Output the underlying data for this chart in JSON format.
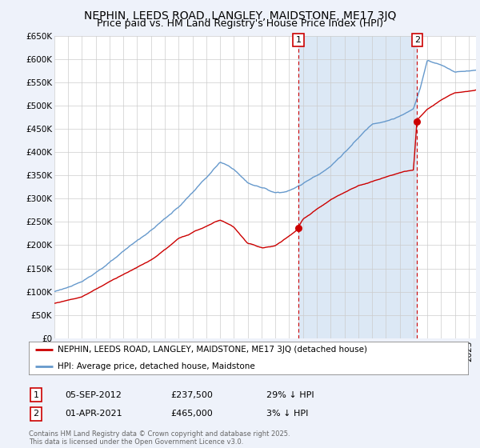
{
  "title": "NEPHIN, LEEDS ROAD, LANGLEY, MAIDSTONE, ME17 3JQ",
  "subtitle": "Price paid vs. HM Land Registry's House Price Index (HPI)",
  "ylim": [
    0,
    650000
  ],
  "yticks": [
    0,
    50000,
    100000,
    150000,
    200000,
    250000,
    300000,
    350000,
    400000,
    450000,
    500000,
    550000,
    600000,
    650000
  ],
  "ytick_labels": [
    "£0",
    "£50K",
    "£100K",
    "£150K",
    "£200K",
    "£250K",
    "£300K",
    "£350K",
    "£400K",
    "£450K",
    "£500K",
    "£550K",
    "£600K",
    "£650K"
  ],
  "xlim_start": 1995.0,
  "xlim_end": 2025.5,
  "background_color": "#eef2fa",
  "plot_bg_color": "#ffffff",
  "shade_color": "#dce8f5",
  "red_line_color": "#cc0000",
  "blue_line_color": "#6699cc",
  "sale1_x": 2012.67,
  "sale1_y": 237500,
  "sale1_label": "1",
  "sale1_date": "05-SEP-2012",
  "sale1_price": "£237,500",
  "sale1_hpi": "29% ↓ HPI",
  "sale2_x": 2021.25,
  "sale2_y": 465000,
  "sale2_label": "2",
  "sale2_date": "01-APR-2021",
  "sale2_price": "£465,000",
  "sale2_hpi": "3% ↓ HPI",
  "legend_line1": "NEPHIN, LEEDS ROAD, LANGLEY, MAIDSTONE, ME17 3JQ (detached house)",
  "legend_line2": "HPI: Average price, detached house, Maidstone",
  "footnote": "Contains HM Land Registry data © Crown copyright and database right 2025.\nThis data is licensed under the Open Government Licence v3.0.",
  "title_fontsize": 10,
  "subtitle_fontsize": 9,
  "tick_fontsize": 7.5,
  "legend_fontsize": 7.5,
  "footnote_fontsize": 6
}
